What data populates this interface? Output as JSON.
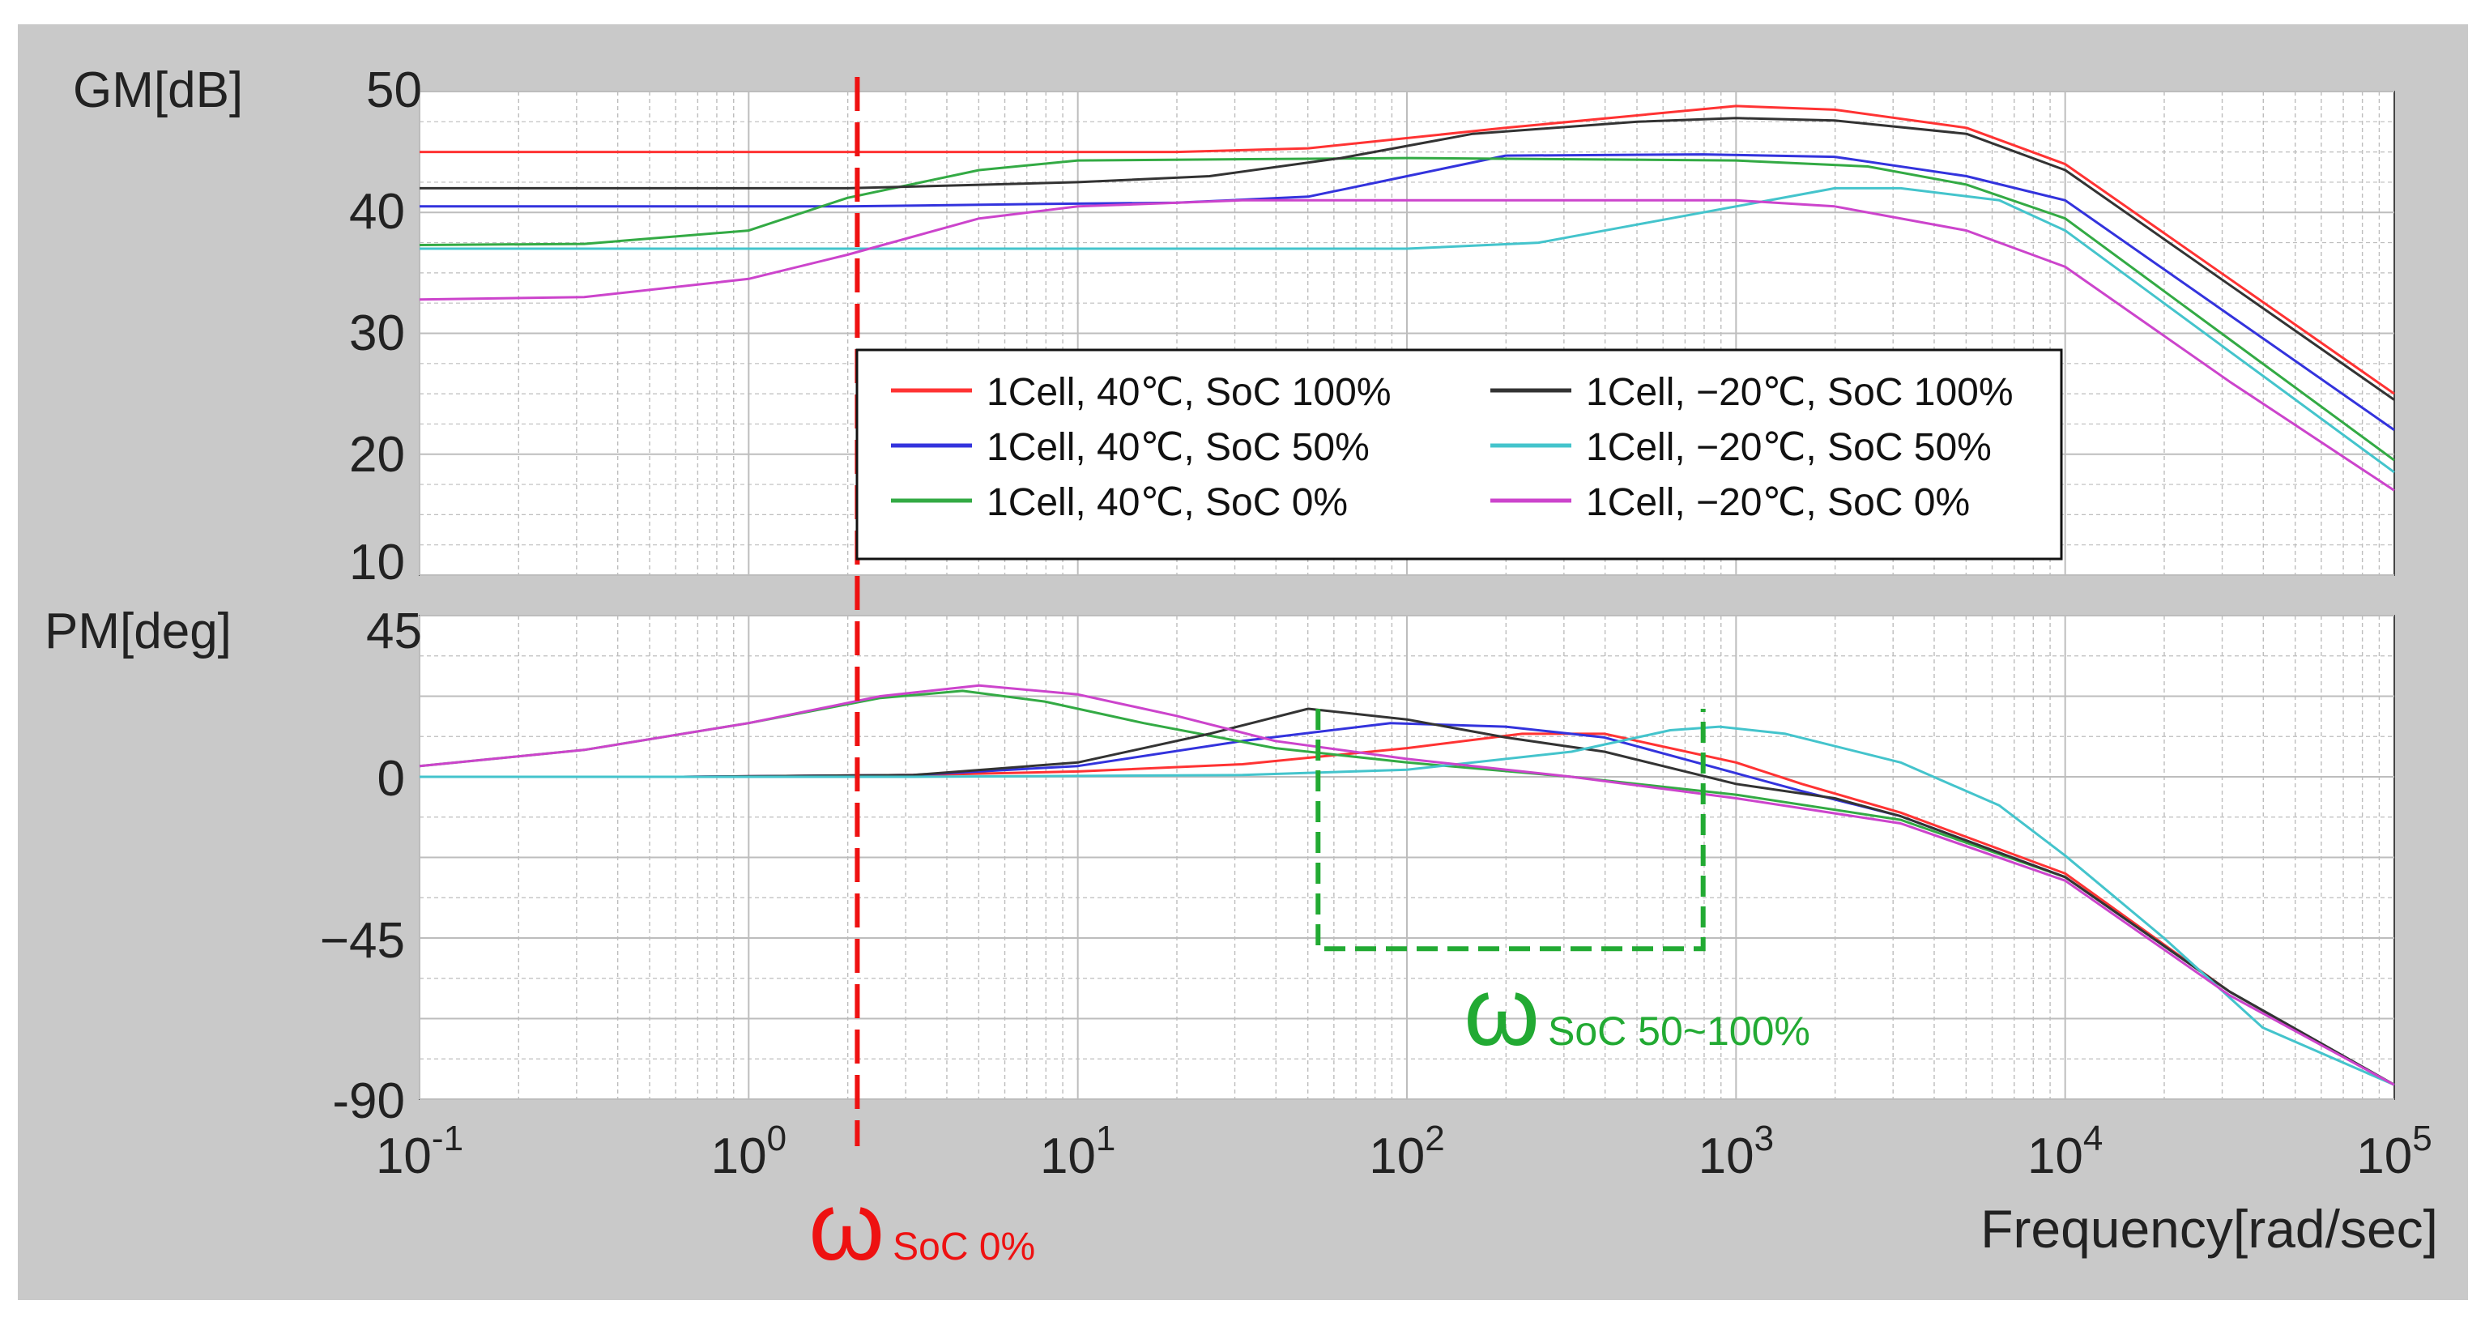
{
  "chart_data": [
    {
      "type": "line",
      "panel": "gain-margin",
      "ylabel": "GM[dB]",
      "y_axis_label_value": "50",
      "ylim": [
        10,
        50
      ],
      "yticks": [
        "10",
        "20",
        "30",
        "40"
      ],
      "xlim_log10": [
        -1,
        5
      ],
      "xscale": "log",
      "grid": true,
      "legend_position": "center-right",
      "series": [
        {
          "name": "1Cell, 40℃, SoC 100%",
          "color": "#ff3333",
          "points": [
            [
              -1,
              45
            ],
            [
              0.3,
              45
            ],
            [
              1.3,
              45
            ],
            [
              1.7,
              45.3
            ],
            [
              2.3,
              47
            ],
            [
              3,
              48.8
            ],
            [
              3.3,
              48.5
            ],
            [
              3.7,
              47
            ],
            [
              4,
              44
            ],
            [
              4.5,
              34.5
            ],
            [
              5,
              25
            ]
          ]
        },
        {
          "name": "1Cell, 40℃, SoC 50%",
          "color": "#3333dd",
          "points": [
            [
              -1,
              40.5
            ],
            [
              0.3,
              40.5
            ],
            [
              0.9,
              40.7
            ],
            [
              1.3,
              40.8
            ],
            [
              1.7,
              41.3
            ],
            [
              2,
              43
            ],
            [
              2.3,
              44.7
            ],
            [
              2.9,
              44.8
            ],
            [
              3.3,
              44.6
            ],
            [
              3.7,
              43
            ],
            [
              4,
              41
            ],
            [
              4.5,
              31.5
            ],
            [
              5,
              22
            ]
          ]
        },
        {
          "name": "1Cell, 40℃, SoC 0%",
          "color": "#33aa44",
          "points": [
            [
              -1,
              37.3
            ],
            [
              -0.5,
              37.4
            ],
            [
              0,
              38.5
            ],
            [
              0.3,
              41.2
            ],
            [
              0.7,
              43.5
            ],
            [
              1,
              44.3
            ],
            [
              2,
              44.5
            ],
            [
              3,
              44.3
            ],
            [
              3.4,
              43.8
            ],
            [
              3.7,
              42.3
            ],
            [
              4,
              39.5
            ],
            [
              4.5,
              29.5
            ],
            [
              5,
              19.5
            ]
          ]
        },
        {
          "name": "1Cell, −20℃, SoC 100%",
          "color": "#333333",
          "points": [
            [
              -1,
              42
            ],
            [
              0.3,
              42
            ],
            [
              1,
              42.5
            ],
            [
              1.4,
              43
            ],
            [
              1.8,
              44.5
            ],
            [
              2.2,
              46.5
            ],
            [
              2.7,
              47.5
            ],
            [
              3,
              47.8
            ],
            [
              3.3,
              47.6
            ],
            [
              3.7,
              46.5
            ],
            [
              4,
              43.5
            ],
            [
              4.5,
              34
            ],
            [
              5,
              24.5
            ]
          ]
        },
        {
          "name": "1Cell, −20℃, SoC 50%",
          "color": "#44c4cc",
          "points": [
            [
              -1,
              37
            ],
            [
              2,
              37
            ],
            [
              2.4,
              37.5
            ],
            [
              2.7,
              39
            ],
            [
              3,
              40.5
            ],
            [
              3.3,
              42
            ],
            [
              3.5,
              42
            ],
            [
              3.8,
              41
            ],
            [
              4,
              38.5
            ],
            [
              4.5,
              28.5
            ],
            [
              5,
              18.5
            ]
          ]
        },
        {
          "name": "1Cell, −20℃, SoC 0%",
          "color": "#cc44cc",
          "points": [
            [
              -1,
              32.8
            ],
            [
              -0.5,
              33
            ],
            [
              0,
              34.5
            ],
            [
              0.3,
              36.5
            ],
            [
              0.7,
              39.5
            ],
            [
              1,
              40.5
            ],
            [
              1.5,
              41
            ],
            [
              2,
              41
            ],
            [
              3,
              41
            ],
            [
              3.3,
              40.5
            ],
            [
              3.7,
              38.5
            ],
            [
              4,
              35.5
            ],
            [
              4.5,
              26
            ],
            [
              5,
              17
            ]
          ]
        }
      ]
    },
    {
      "type": "line",
      "panel": "phase-margin",
      "ylabel": "PM[deg]",
      "y_axis_label_value": "45",
      "ylim": [
        -90,
        45
      ],
      "yticks": [
        "-90",
        "−45",
        "0"
      ],
      "xlabel": "Frequency[rad/sec]",
      "xtick_base": "10",
      "xtick_exponents": [
        "-1",
        "0",
        "1",
        "2",
        "3",
        "4",
        "5"
      ],
      "xlim_log10": [
        -1,
        5
      ],
      "xscale": "log",
      "grid": true,
      "series": [
        {
          "name": "1Cell, 40℃, SoC 100%",
          "color": "#ff3333",
          "points": [
            [
              -0.2,
              0
            ],
            [
              0.5,
              0.5
            ],
            [
              1,
              1.5
            ],
            [
              1.5,
              3.5
            ],
            [
              2,
              8
            ],
            [
              2.35,
              12
            ],
            [
              2.6,
              12
            ],
            [
              3,
              4
            ],
            [
              3.2,
              -2
            ],
            [
              3.5,
              -10
            ],
            [
              4,
              -27
            ],
            [
              4.5,
              -60
            ],
            [
              5,
              -86
            ]
          ]
        },
        {
          "name": "1Cell, 40℃, SoC 50%",
          "color": "#3333dd",
          "points": [
            [
              -0.2,
              0
            ],
            [
              0.5,
              0.5
            ],
            [
              1,
              3
            ],
            [
              1.5,
              10
            ],
            [
              1.95,
              15
            ],
            [
              2.3,
              14
            ],
            [
              2.6,
              11
            ],
            [
              3,
              1
            ],
            [
              3.2,
              -4
            ],
            [
              3.5,
              -11
            ],
            [
              4,
              -28
            ],
            [
              4.5,
              -60
            ],
            [
              5,
              -86
            ]
          ]
        },
        {
          "name": "1Cell, 40℃, SoC 0%",
          "color": "#33aa44",
          "points": [
            [
              -1,
              3
            ],
            [
              -0.5,
              7.5
            ],
            [
              0,
              15
            ],
            [
              0.4,
              22
            ],
            [
              0.65,
              24
            ],
            [
              0.9,
              21
            ],
            [
              1.2,
              15
            ],
            [
              1.6,
              8
            ],
            [
              2,
              4
            ],
            [
              2.5,
              0
            ],
            [
              3,
              -5
            ],
            [
              3.5,
              -12
            ],
            [
              4,
              -28
            ],
            [
              4.5,
              -60
            ],
            [
              5,
              -86
            ]
          ]
        },
        {
          "name": "1Cell, −20℃, SoC 100%",
          "color": "#333333",
          "points": [
            [
              -0.2,
              0
            ],
            [
              0.5,
              0.5
            ],
            [
              1,
              4
            ],
            [
              1.4,
              12
            ],
            [
              1.7,
              19
            ],
            [
              2,
              16
            ],
            [
              2.3,
              11
            ],
            [
              2.6,
              7
            ],
            [
              3,
              -2
            ],
            [
              3.3,
              -6
            ],
            [
              3.5,
              -11
            ],
            [
              4,
              -28
            ],
            [
              4.5,
              -60
            ],
            [
              5,
              -86
            ]
          ]
        },
        {
          "name": "1Cell, −20℃, SoC 50%",
          "color": "#44c4cc",
          "points": [
            [
              -1,
              0
            ],
            [
              0.5,
              0
            ],
            [
              1.5,
              0.5
            ],
            [
              2,
              2
            ],
            [
              2.5,
              7
            ],
            [
              2.8,
              13
            ],
            [
              2.95,
              14
            ],
            [
              3.15,
              12
            ],
            [
              3.5,
              4
            ],
            [
              3.8,
              -8
            ],
            [
              4,
              -22
            ],
            [
              4.3,
              -45
            ],
            [
              4.6,
              -70
            ],
            [
              5,
              -86
            ]
          ]
        },
        {
          "name": "1Cell, −20℃, SoC 0%",
          "color": "#cc44cc",
          "points": [
            [
              -1,
              3
            ],
            [
              -0.5,
              7.5
            ],
            [
              0,
              15
            ],
            [
              0.4,
              22.5
            ],
            [
              0.7,
              25.5
            ],
            [
              1,
              23
            ],
            [
              1.3,
              17
            ],
            [
              1.6,
              10
            ],
            [
              2,
              5
            ],
            [
              2.5,
              0
            ],
            [
              3,
              -6
            ],
            [
              3.5,
              -13
            ],
            [
              4,
              -29
            ],
            [
              4.5,
              -61
            ],
            [
              5,
              -86
            ]
          ]
        }
      ]
    }
  ],
  "legend": {
    "items": [
      {
        "label": "1Cell, 40℃, SoC 100%",
        "color": "#ff3333"
      },
      {
        "label": "1Cell, 40℃, SoC 50%",
        "color": "#3333dd"
      },
      {
        "label": "1Cell, 40℃, SoC 0%",
        "color": "#33aa44"
      },
      {
        "label": "1Cell, −20℃, SoC 100%",
        "color": "#333333"
      },
      {
        "label": "1Cell, −20℃, SoC 50%",
        "color": "#44c4cc"
      },
      {
        "label": "1Cell, −20℃, SoC 0%",
        "color": "#cc44cc"
      }
    ]
  },
  "annotations": {
    "red_marker": {
      "log10_x": 0.33,
      "symbol": "ω",
      "subscript": "SoC 0%",
      "color": "#ee1111"
    },
    "green_box": {
      "log10_x_start": 1.73,
      "log10_x_end": 2.9,
      "y_top": 19,
      "y_bottom": -48,
      "symbol": "ω",
      "subscript": "SoC 50~100%",
      "color": "#22aa33"
    }
  },
  "colors": {
    "frame_bg": "#c9c9c9",
    "plot_bg": "#ffffff",
    "grid": "#bdbdbd"
  }
}
